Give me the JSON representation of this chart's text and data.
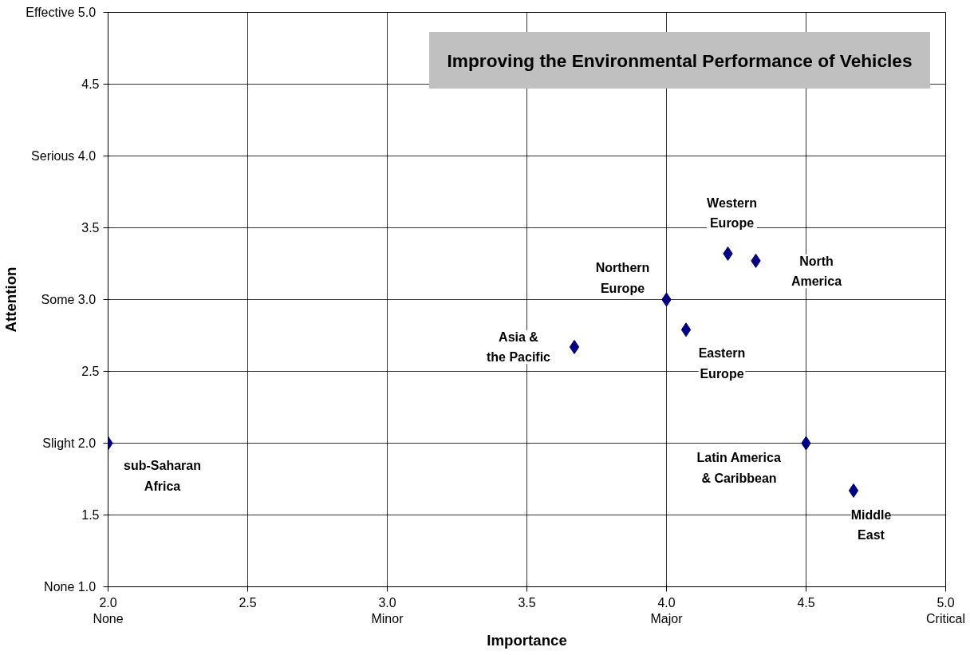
{
  "chart_data": {
    "type": "scatter",
    "title": "Improving the Environmental Performance of Vehicles",
    "xlabel": "Importance",
    "ylabel": "Attention",
    "x": [
      2.0,
      3.67,
      4.0,
      4.07,
      4.22,
      4.32,
      4.5,
      4.67
    ],
    "series": [
      {
        "color": "#000080",
        "values": [
          2.0,
          2.67,
          3.0,
          2.79,
          3.32,
          3.27,
          2.0,
          1.67
        ]
      }
    ],
    "annotations": [
      {
        "text": "sub-Saharan\nAfrica",
        "x": 2.0,
        "y": 2.0
      },
      {
        "text": "Asia &\nthe Pacific",
        "x": 3.67,
        "y": 2.67
      },
      {
        "text": "Northern\nEurope",
        "x": 4.0,
        "y": 3.0
      },
      {
        "text": "Eastern\nEurope",
        "x": 4.07,
        "y": 2.79
      },
      {
        "text": "Western\nEurope",
        "x": 4.22,
        "y": 3.32
      },
      {
        "text": "North\nAmerica",
        "x": 4.32,
        "y": 3.27
      },
      {
        "text": "Latin America\n& Caribbean",
        "x": 4.5,
        "y": 2.0
      },
      {
        "text": "Middle\nEast",
        "x": 4.67,
        "y": 1.67
      }
    ],
    "xlim": [
      2.0,
      5.0
    ],
    "xticks": [
      {
        "value": 2.0,
        "label": "2.0\nNone"
      },
      2.5,
      {
        "value": 3.0,
        "label": "3.0\nMinor"
      },
      3.5,
      {
        "value": 4.0,
        "label": "4.0\nMajor"
      },
      4.5,
      {
        "value": 5.0,
        "label": "5.0\nCritical"
      }
    ],
    "ylim": [
      1.0,
      5.0
    ],
    "yticks": [
      {
        "value": 1.0,
        "label": "None  1.0"
      },
      1.5,
      {
        "value": 2.0,
        "label": "Slight  2.0"
      },
      2.5,
      {
        "value": 3.0,
        "label": "Some  3.0"
      },
      3.5,
      {
        "value": 4.0,
        "label": "Serious  4.0"
      },
      4.5,
      {
        "value": 5.0,
        "label": "Effective  5.0"
      }
    ],
    "grid": true,
    "marker": "diamond"
  }
}
